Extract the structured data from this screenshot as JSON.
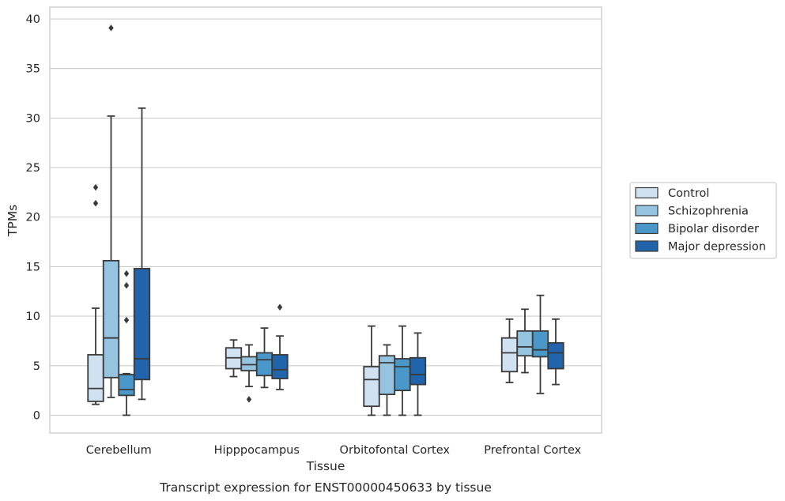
{
  "chart_data": {
    "type": "box",
    "caption": "Transcript expression for ENST00000450633 by tissue",
    "xlabel": "Tissue",
    "ylabel": "TPMs",
    "ylim": [
      -1.8,
      41.2
    ],
    "yticks": [
      0,
      5,
      10,
      15,
      20,
      25,
      30,
      35,
      40
    ],
    "grid": "horizontal",
    "legend_position": "right",
    "categories": [
      "Cerebellum",
      "Hipppocampus",
      "Orbitofontal Cortex",
      "Prefrontal Cortex"
    ],
    "series": [
      {
        "name": "Control",
        "color": "#d0e1f2",
        "boxes": [
          {
            "whislo": 1.1,
            "q1": 1.4,
            "med": 2.7,
            "q3": 6.1,
            "whishi": 10.8,
            "fliers": [
              23.0,
              21.4
            ]
          },
          {
            "whislo": 3.9,
            "q1": 4.7,
            "med": 5.8,
            "q3": 6.8,
            "whishi": 7.6,
            "fliers": []
          },
          {
            "whislo": 0.0,
            "q1": 0.9,
            "med": 3.6,
            "q3": 4.9,
            "whishi": 9.0,
            "fliers": []
          },
          {
            "whislo": 3.3,
            "q1": 4.4,
            "med": 6.3,
            "q3": 7.8,
            "whishi": 9.7,
            "fliers": []
          }
        ]
      },
      {
        "name": "Schizophrenia",
        "color": "#94c4df",
        "boxes": [
          {
            "whislo": 1.8,
            "q1": 3.8,
            "med": 7.8,
            "q3": 15.6,
            "whishi": 30.2,
            "fliers": [
              39.1
            ]
          },
          {
            "whislo": 2.9,
            "q1": 4.5,
            "med": 5.1,
            "q3": 5.9,
            "whishi": 7.1,
            "fliers": [
              1.6
            ]
          },
          {
            "whislo": 0.0,
            "q1": 2.1,
            "med": 5.3,
            "q3": 6.0,
            "whishi": 7.1,
            "fliers": []
          },
          {
            "whislo": 4.3,
            "q1": 6.0,
            "med": 6.9,
            "q3": 8.5,
            "whishi": 10.7,
            "fliers": []
          }
        ]
      },
      {
        "name": "Bipolar disorder",
        "color": "#4a98c9",
        "boxes": [
          {
            "whislo": 0.0,
            "q1": 2.0,
            "med": 2.6,
            "q3": 4.1,
            "whishi": 4.2,
            "fliers": [
              14.3,
              13.1,
              9.6
            ]
          },
          {
            "whislo": 2.8,
            "q1": 4.0,
            "med": 5.6,
            "q3": 6.3,
            "whishi": 8.8,
            "fliers": []
          },
          {
            "whislo": 0.0,
            "q1": 2.5,
            "med": 4.9,
            "q3": 5.7,
            "whishi": 9.0,
            "fliers": []
          },
          {
            "whislo": 2.2,
            "q1": 5.9,
            "med": 6.6,
            "q3": 8.5,
            "whishi": 12.1,
            "fliers": []
          }
        ]
      },
      {
        "name": "Major depression",
        "color": "#2164ab",
        "boxes": [
          {
            "whislo": 1.6,
            "q1": 3.6,
            "med": 5.7,
            "q3": 14.8,
            "whishi": 31.0,
            "fliers": []
          },
          {
            "whislo": 2.6,
            "q1": 3.7,
            "med": 4.6,
            "q3": 6.1,
            "whishi": 8.0,
            "fliers": [
              10.9
            ]
          },
          {
            "whislo": 0.0,
            "q1": 3.1,
            "med": 4.1,
            "q3": 5.8,
            "whishi": 8.3,
            "fliers": []
          },
          {
            "whislo": 3.1,
            "q1": 4.7,
            "med": 6.3,
            "q3": 7.3,
            "whishi": 9.7,
            "fliers": []
          }
        ]
      }
    ]
  }
}
